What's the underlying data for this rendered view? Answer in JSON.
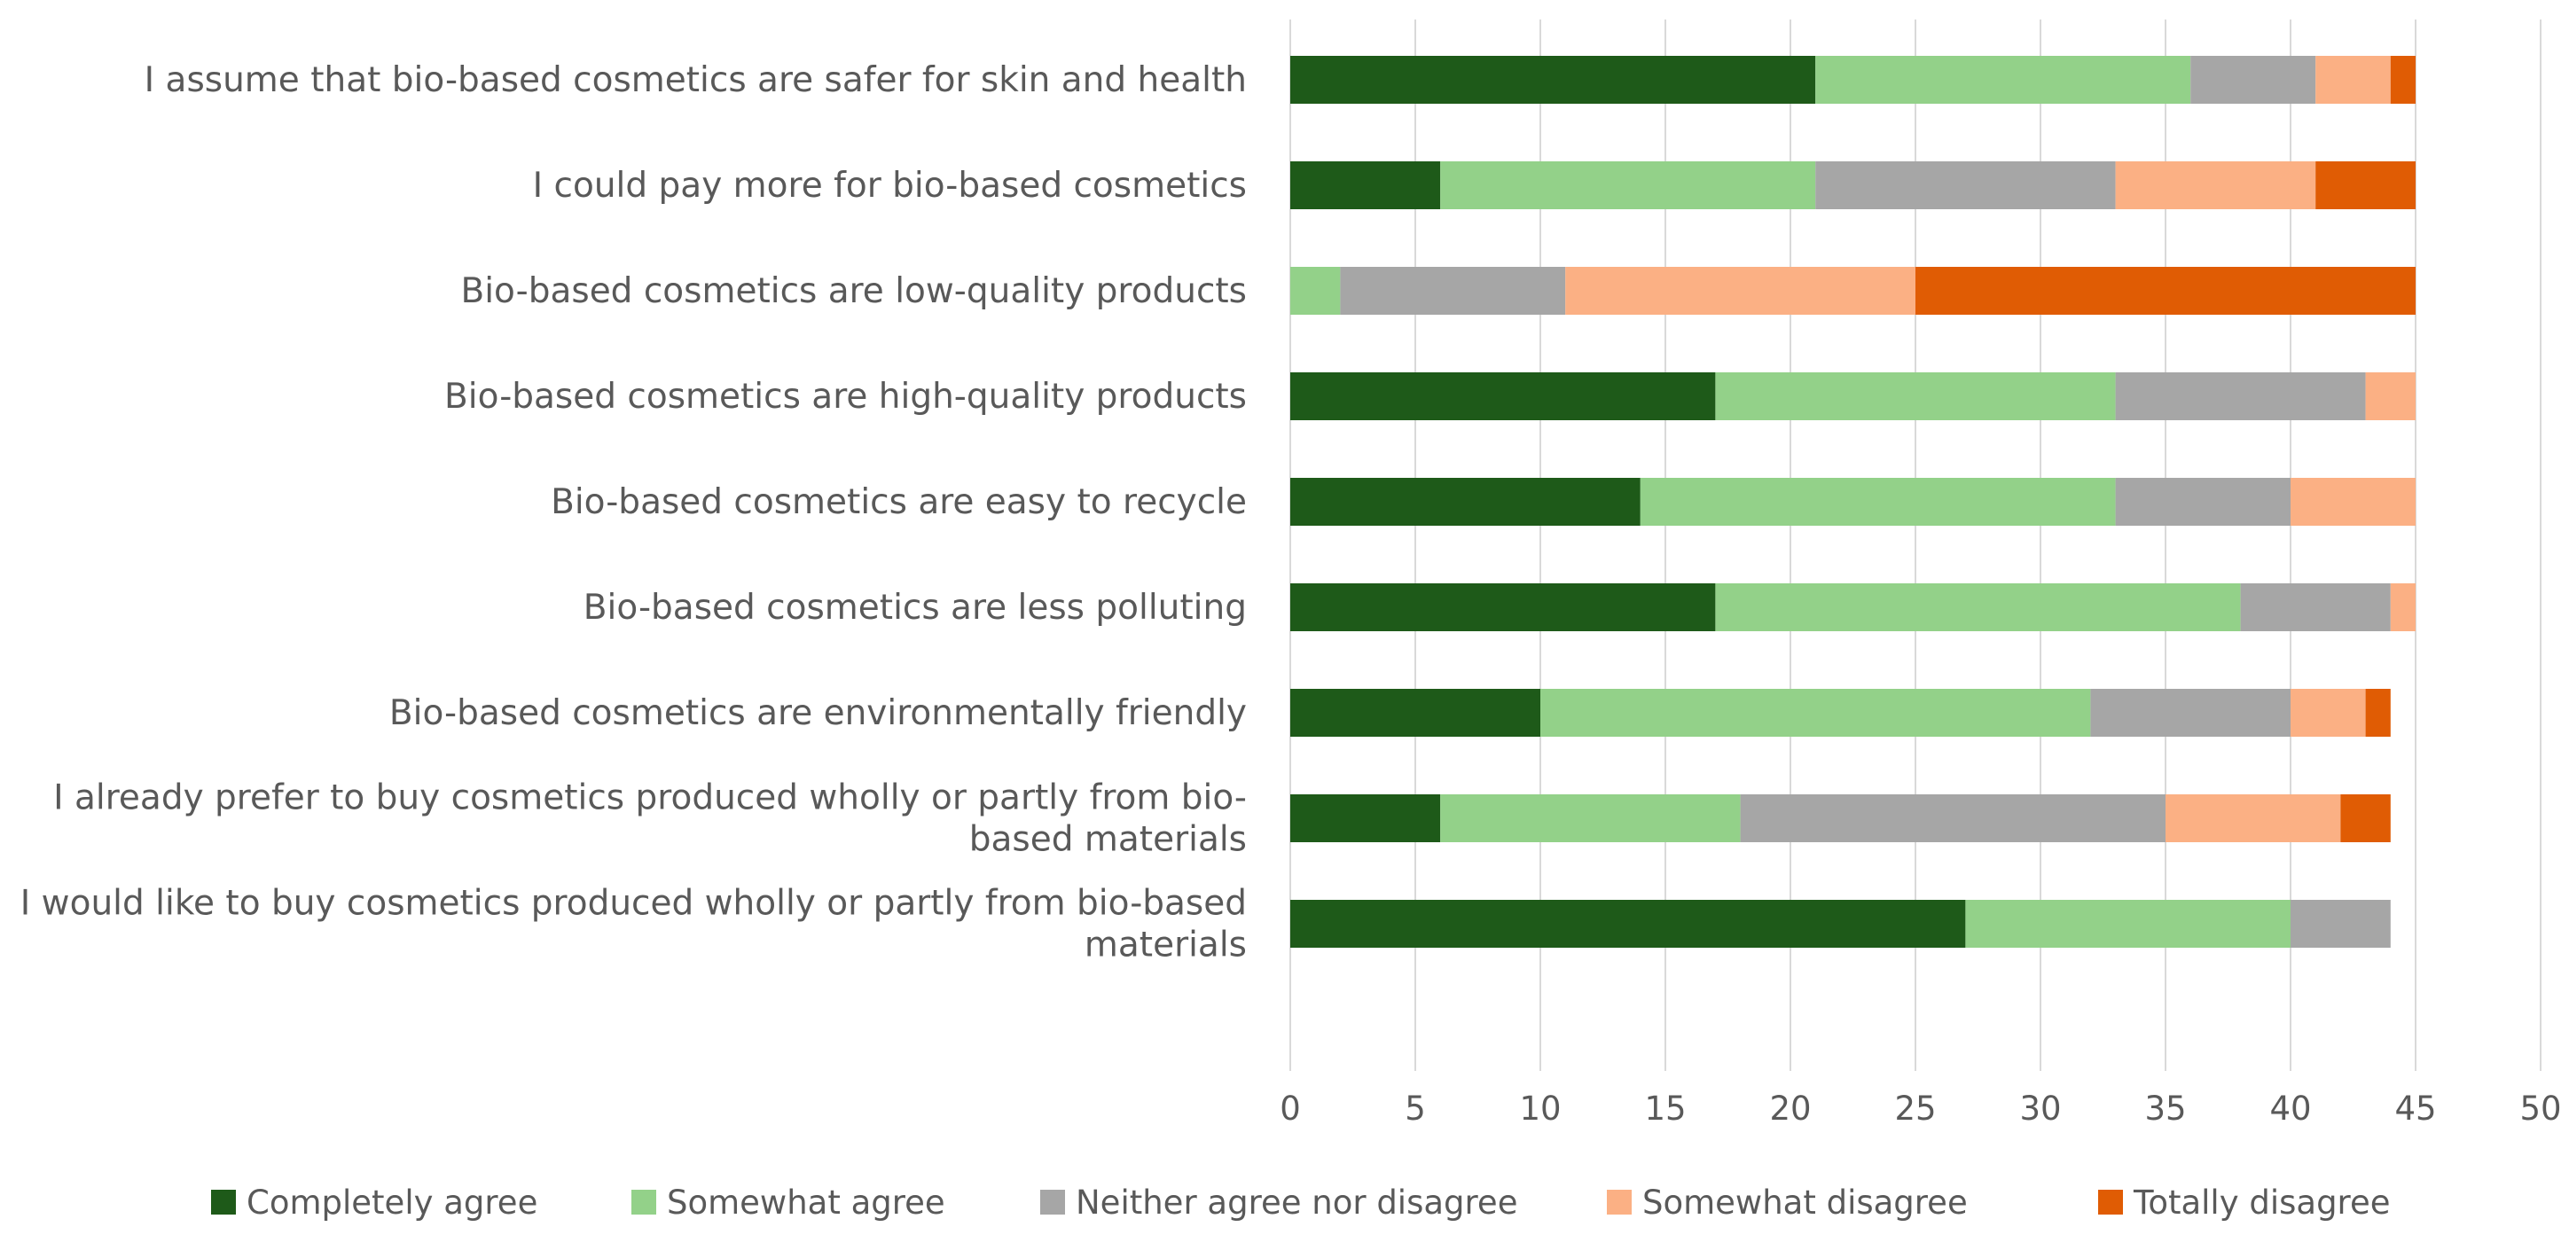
{
  "chart_data": {
    "type": "bar",
    "orientation": "horizontal",
    "stacked": true,
    "title": "",
    "xlabel": "",
    "ylabel": "",
    "xlim": [
      0,
      50
    ],
    "x_ticks": [
      "0",
      "5",
      "10",
      "15",
      "20",
      "25",
      "30",
      "35",
      "40",
      "45",
      "50"
    ],
    "grid": "vertical",
    "legend_position": "bottom",
    "categories": [
      [
        "I assume that bio-based cosmetics are safer for skin and health"
      ],
      [
        "I could pay more for bio-based cosmetics"
      ],
      [
        "Bio-based cosmetics are low-quality products"
      ],
      [
        "Bio-based cosmetics are high-quality products"
      ],
      [
        "Bio-based cosmetics are easy to recycle"
      ],
      [
        "Bio-based cosmetics are less polluting"
      ],
      [
        "Bio-based cosmetics are environmentally friendly"
      ],
      [
        "I already prefer to buy cosmetics produced wholly or partly from bio-",
        "based materials"
      ],
      [
        "I would like to buy cosmetics produced wholly or partly from bio-based",
        "materials"
      ]
    ],
    "series": [
      {
        "name": "Completely agree",
        "color": "#1e5a19",
        "values": [
          21,
          6,
          0,
          17,
          14,
          17,
          10,
          6,
          27
        ]
      },
      {
        "name": "Somewhat agree",
        "color": "#93d189",
        "values": [
          15,
          15,
          2,
          16,
          19,
          21,
          22,
          12,
          13
        ]
      },
      {
        "name": "Neither agree nor disagree",
        "color": "#a6a6a6",
        "values": [
          5,
          12,
          9,
          10,
          7,
          6,
          8,
          17,
          4
        ]
      },
      {
        "name": "Somewhat disagree",
        "color": "#fbb084",
        "values": [
          3,
          8,
          14,
          2,
          5,
          1,
          3,
          7,
          0
        ]
      },
      {
        "name": "Totally disagree",
        "color": "#e05c04",
        "values": [
          1,
          4,
          20,
          0,
          0,
          0,
          1,
          2,
          0
        ]
      }
    ]
  }
}
